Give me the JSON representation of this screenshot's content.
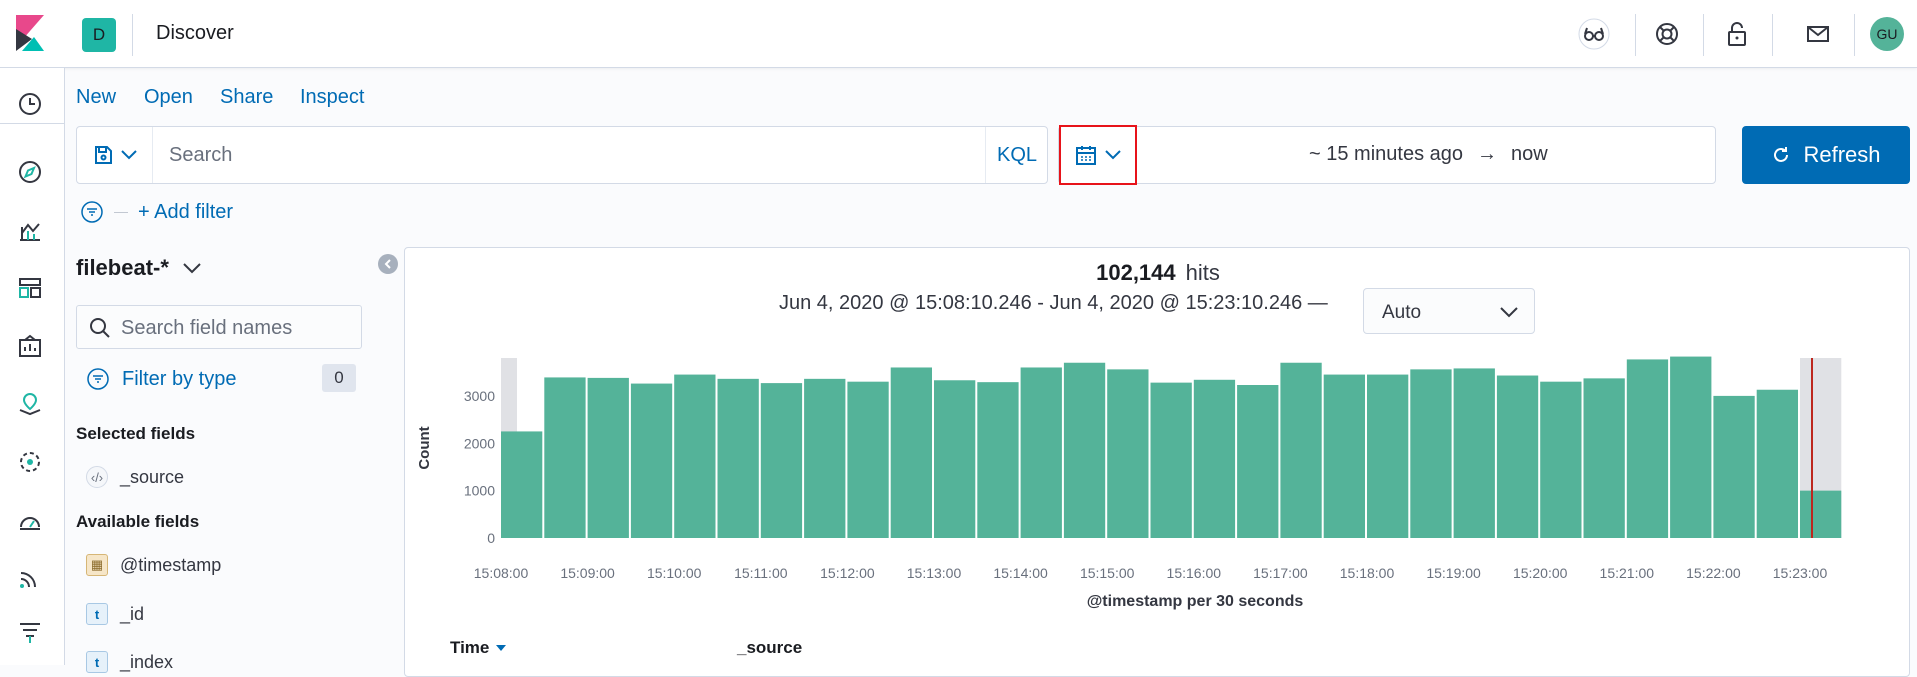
{
  "header": {
    "space_initial": "D",
    "app_title": "Discover",
    "avatar_initials": "GU",
    "icons": [
      "glasses-icon",
      "help-icon",
      "lock-icon",
      "mail-icon"
    ]
  },
  "sidenav": {
    "items": [
      "recent-icon",
      "discover-icon",
      "visualize-icon",
      "dashboard-icon",
      "canvas-icon",
      "maps-icon",
      "ml-icon",
      "metrics-icon",
      "logs-icon",
      "apm-icon"
    ]
  },
  "top_menu": {
    "new": "New",
    "open": "Open",
    "share": "Share",
    "inspect": "Inspect"
  },
  "query_bar": {
    "placeholder": "Search",
    "language": "KQL"
  },
  "time_picker": {
    "start": "~ 15 minutes ago",
    "arrow": "→",
    "end": "now",
    "refresh_label": "Refresh"
  },
  "filters": {
    "add_filter": "+ Add filter"
  },
  "sidebar": {
    "index_pattern": "filebeat-*",
    "field_search_placeholder": "Search field names",
    "filter_by_type": "Filter by type",
    "filter_count": "0",
    "selected_title": "Selected fields",
    "selected_fields": [
      {
        "name": "_source",
        "type": "source"
      }
    ],
    "available_title": "Available fields",
    "available_fields": [
      {
        "name": "@timestamp",
        "type": "date",
        "token": "▦"
      },
      {
        "name": "_id",
        "type": "string",
        "token": "t"
      },
      {
        "name": "_index",
        "type": "string",
        "token": "t"
      }
    ]
  },
  "main": {
    "hits_count": "102,144",
    "hits_label": "hits",
    "time_range": "Jun 4, 2020 @ 15:08:10.246 - Jun 4, 2020 @ 15:23:10.246 —",
    "interval": "Auto",
    "table_headers": [
      "Time",
      "_source"
    ]
  },
  "colors": {
    "accent": "#006bb4",
    "bar": "#54b399",
    "highlight_border": "#e7131a"
  },
  "chart_data": {
    "type": "bar",
    "ylabel": "Count",
    "xlabel": "@timestamp per 30 seconds",
    "ylim": [
      0,
      3800
    ],
    "yticks": [
      0,
      1000,
      2000,
      3000
    ],
    "xtick_labels": [
      "15:08:00",
      "15:09:00",
      "15:10:00",
      "15:11:00",
      "15:12:00",
      "15:13:00",
      "15:14:00",
      "15:15:00",
      "15:16:00",
      "15:17:00",
      "15:18:00",
      "15:19:00",
      "15:20:00",
      "15:21:00",
      "15:22:00",
      "15:23:00"
    ],
    "values": [
      2250,
      3390,
      3380,
      3260,
      3450,
      3360,
      3270,
      3360,
      3300,
      3600,
      3330,
      3290,
      3600,
      3700,
      3560,
      3280,
      3340,
      3230,
      3700,
      3450,
      3450,
      3560,
      3580,
      3430,
      3300,
      3370,
      3770,
      3830,
      3000,
      3130,
      1000
    ],
    "current_time_marker": "15:23:10"
  }
}
